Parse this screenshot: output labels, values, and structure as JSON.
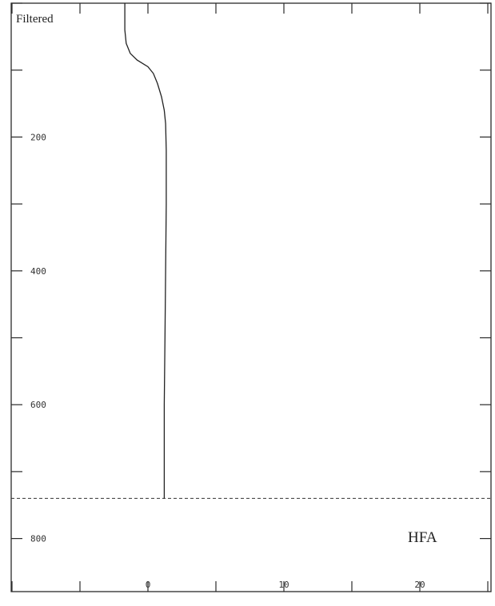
{
  "chart_data": {
    "type": "line",
    "title": "",
    "corner_label": "Filtered",
    "annotation": "HFA",
    "xlabel": "",
    "ylabel": "",
    "xlim": [
      -10,
      25
    ],
    "ylim": [
      0,
      860
    ],
    "y_inverted": true,
    "x_ticks": [
      -10,
      -5,
      0,
      5,
      10,
      15,
      20,
      25
    ],
    "x_tick_labels": [
      {
        "value": 0,
        "text": "0"
      },
      {
        "value": 10,
        "text": "10"
      },
      {
        "value": 20,
        "text": "20"
      }
    ],
    "y_ticks": [
      0,
      100,
      200,
      300,
      400,
      500,
      600,
      700,
      800
    ],
    "y_tick_labels": [
      {
        "value": 200,
        "text": "200"
      },
      {
        "value": 400,
        "text": "400"
      },
      {
        "value": 600,
        "text": "600"
      },
      {
        "value": 800,
        "text": "800"
      }
    ],
    "reference_line": {
      "orientation": "horizontal",
      "y": 740,
      "style": "dashed"
    },
    "series": [
      {
        "x": [
          -1.7,
          -1.7,
          -1.6,
          -1.3,
          -0.8,
          0.0,
          0.4,
          0.7,
          1.0,
          1.2,
          1.3,
          1.35,
          1.35,
          1.3,
          1.25,
          1.2,
          1.2
        ],
        "y": [
          0,
          40,
          60,
          75,
          85,
          95,
          105,
          120,
          140,
          160,
          180,
          220,
          300,
          400,
          500,
          600,
          740
        ]
      }
    ]
  }
}
